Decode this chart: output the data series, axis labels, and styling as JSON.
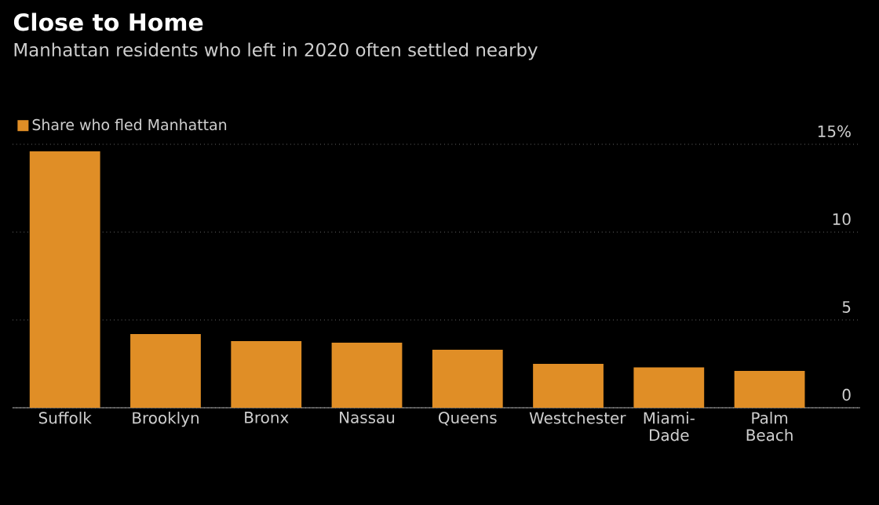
{
  "chart_data": {
    "type": "bar",
    "title": "Close to Home",
    "subtitle": "Manhattan residents who left in 2020 often settled nearby",
    "categories": [
      "Suffolk",
      "Brooklyn",
      "Bronx",
      "Nassau",
      "Queens",
      "Westchester",
      "Miami-Dade",
      "Palm Beach"
    ],
    "series": [
      {
        "name": "Share who fled Manhattan",
        "color": "#e08e26",
        "values": [
          14.6,
          4.2,
          3.8,
          3.7,
          3.3,
          2.5,
          2.3,
          2.1
        ]
      }
    ],
    "ylim": [
      0,
      15
    ],
    "yticks": [
      0,
      5,
      10,
      {
        "value": 15,
        "label": "15%"
      }
    ],
    "grid": "y",
    "legend": "top left"
  }
}
